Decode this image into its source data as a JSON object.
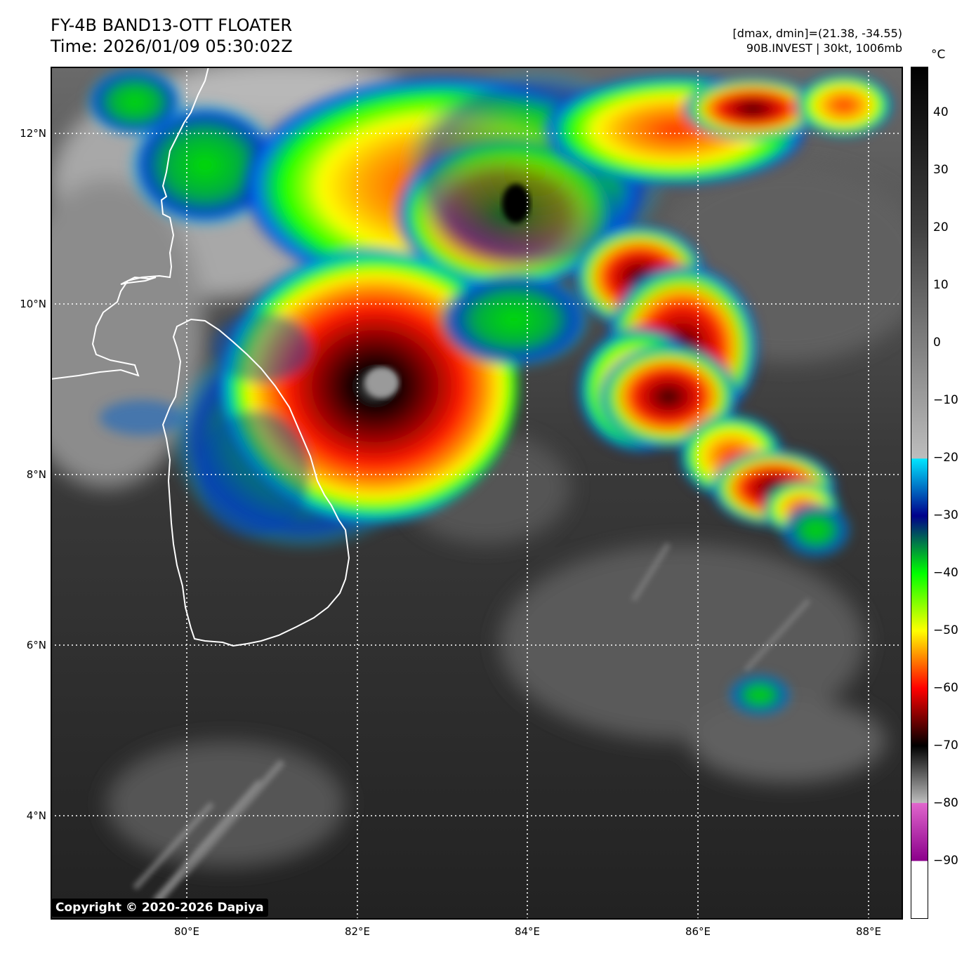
{
  "header": {
    "title": "FY-4B BAND13-OTT FLOATER",
    "time": "Time: 2026/01/09 05:30:02Z",
    "info_line1": "[dmax, dmin]=(21.38, -34.55)",
    "info_line2": "90B.INVEST | 30kt, 1006mb"
  },
  "map": {
    "lat_labels": [
      "12°N",
      "10°N",
      "8°N",
      "6°N",
      "4°N"
    ],
    "lon_labels": [
      "80°E",
      "82°E",
      "84°E",
      "86°E",
      "88°E"
    ],
    "coastline_color": "#ffffff",
    "gridline_color": "#ffffff"
  },
  "colorbar": {
    "unit": "°C",
    "labels": [
      "40",
      "30",
      "20",
      "10",
      "0",
      "−10",
      "−20",
      "−30",
      "−40",
      "−50",
      "−60",
      "−70",
      "−80",
      "−90"
    ],
    "stops": [
      {
        "value": 48,
        "color": "#000000"
      },
      {
        "value": 20,
        "color": "#404040"
      },
      {
        "value": -20,
        "color": "#bdbdbd"
      },
      {
        "value": -20.1,
        "color": "#00e5ff"
      },
      {
        "value": -30,
        "color": "#00008b"
      },
      {
        "value": -40,
        "color": "#00ff00"
      },
      {
        "value": -50,
        "color": "#ffff00"
      },
      {
        "value": -60,
        "color": "#ff0000"
      },
      {
        "value": -70,
        "color": "#000000"
      },
      {
        "value": -79.9,
        "color": "#bdbdbd"
      },
      {
        "value": -80,
        "color": "#e066cc"
      },
      {
        "value": -90,
        "color": "#8b008b"
      },
      {
        "value": -90.1,
        "color": "#ffffff"
      },
      {
        "value": -100,
        "color": "#ffffff"
      }
    ]
  },
  "copyright": "Copyright © 2020-2026 Dapiya"
}
